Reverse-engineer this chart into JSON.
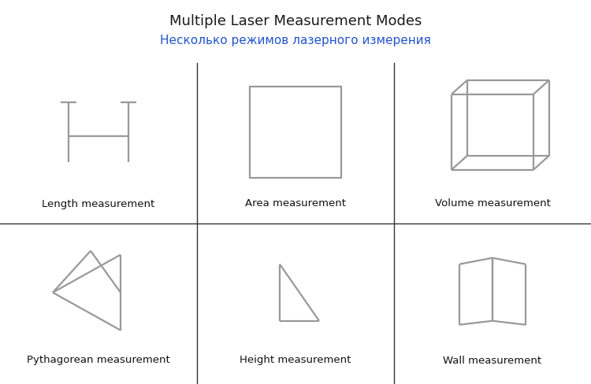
{
  "title": "Multiple Laser Measurement Modes",
  "subtitle": "Несколько режимов лазерного измерения",
  "title_color": "#1a1a1a",
  "subtitle_color": "#2255cc",
  "shape_color": "#999999",
  "grid_line_color": "#333333",
  "label_color": "#111111",
  "labels": [
    "Length measurement",
    "Area measurement",
    "Volume measurement",
    "Pythagorean measurement",
    "Height measurement",
    "Wall measurement"
  ],
  "background_color": "#ffffff",
  "title_fontsize": 13,
  "subtitle_fontsize": 11,
  "label_fontsize": 9.5
}
